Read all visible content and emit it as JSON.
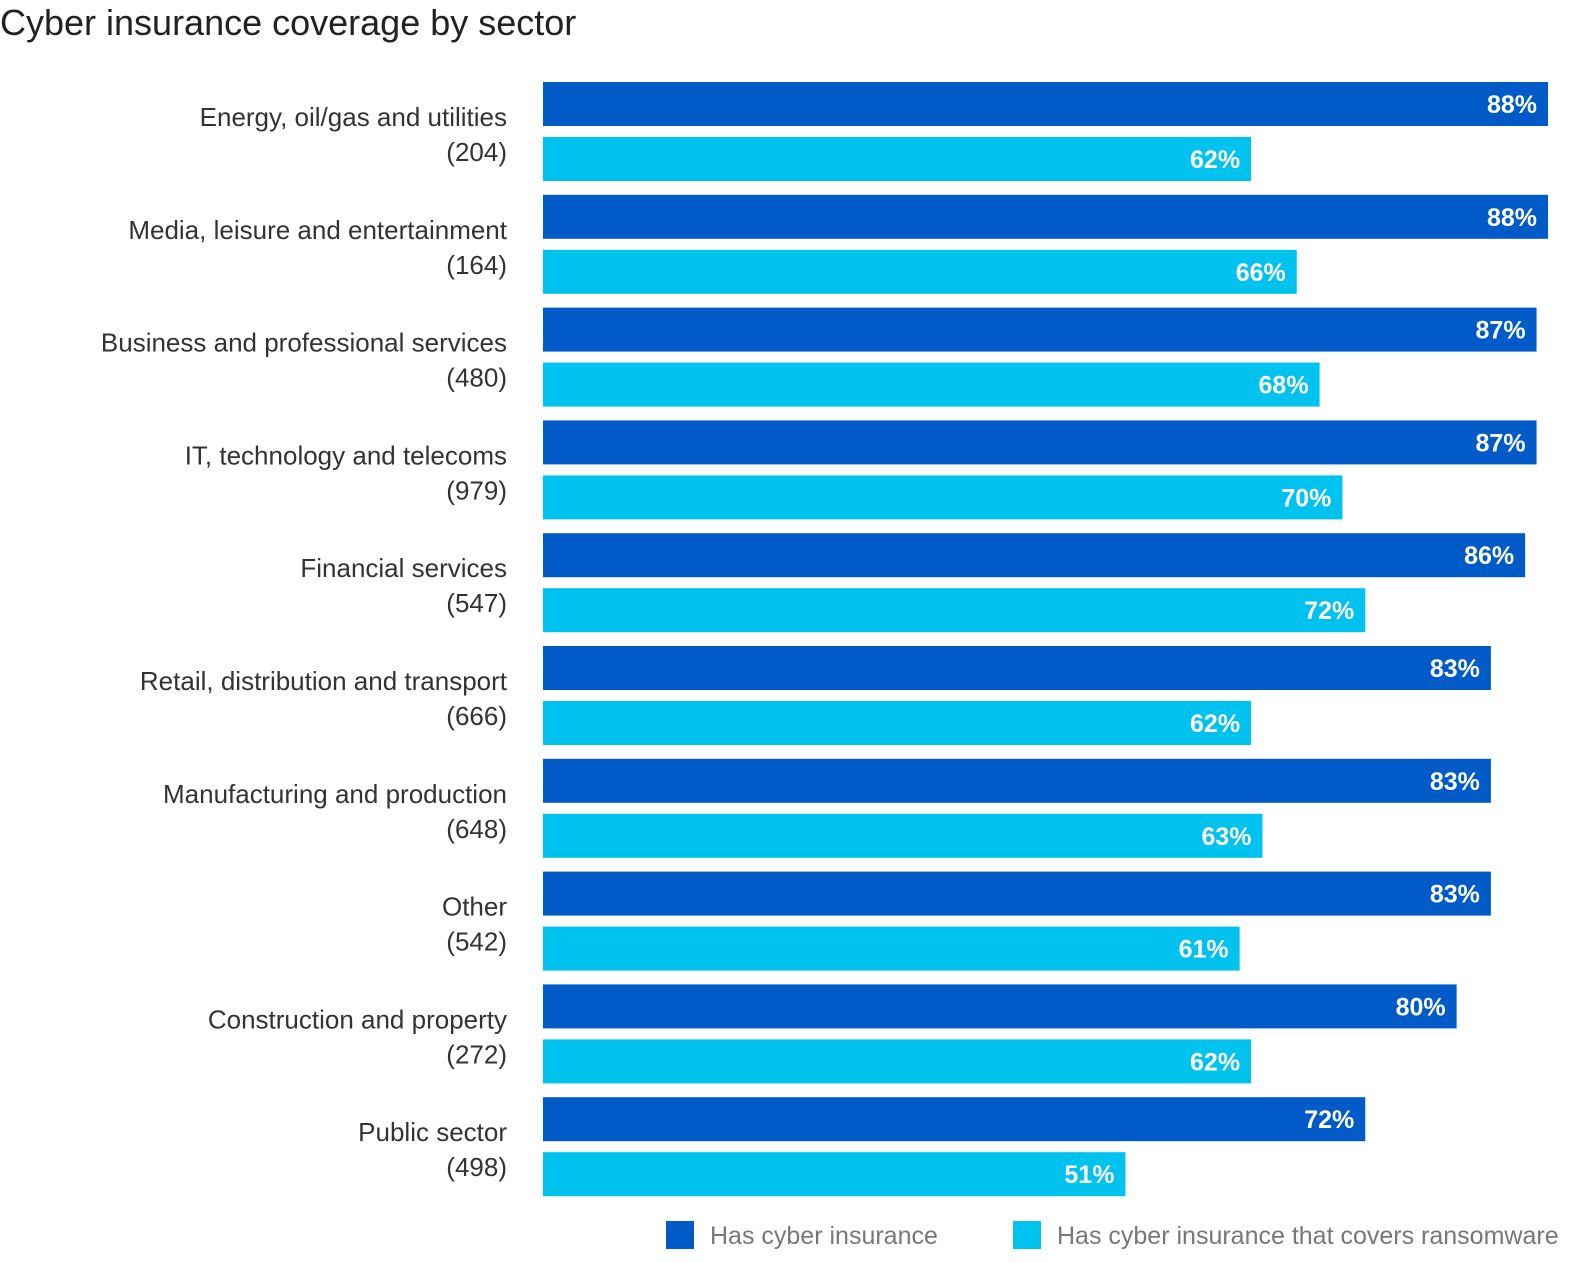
{
  "chart_data": {
    "type": "bar",
    "orientation": "horizontal",
    "title": "Cyber insurance coverage by sector",
    "xlim": [
      0,
      100
    ],
    "grid": false,
    "legend_placement": "bottom",
    "categories": [
      {
        "label": "Energy, oil/gas and utilities",
        "n": "(204)"
      },
      {
        "label": "Media, leisure and entertainment",
        "n": "(164)"
      },
      {
        "label": "Business and professional services",
        "n": "(480)"
      },
      {
        "label": "IT, technology and telecoms",
        "n": "(979)"
      },
      {
        "label": "Financial services",
        "n": "(547)"
      },
      {
        "label": "Retail, distribution and transport",
        "n": "(666)"
      },
      {
        "label": "Manufacturing and production",
        "n": "(648)"
      },
      {
        "label": "Other",
        "n": "(542)"
      },
      {
        "label": "Construction and property",
        "n": "(272)"
      },
      {
        "label": "Public sector",
        "n": "(498)"
      }
    ],
    "series": [
      {
        "name": "Has cyber insurance",
        "color": "#005bc8",
        "values": [
          88,
          88,
          87,
          87,
          86,
          83,
          83,
          83,
          80,
          72
        ]
      },
      {
        "name": "Has cyber insurance that covers ransomware",
        "color": "#00c2ef",
        "values": [
          62,
          66,
          68,
          70,
          72,
          62,
          63,
          61,
          62,
          51
        ]
      }
    ],
    "value_suffix": "%"
  }
}
